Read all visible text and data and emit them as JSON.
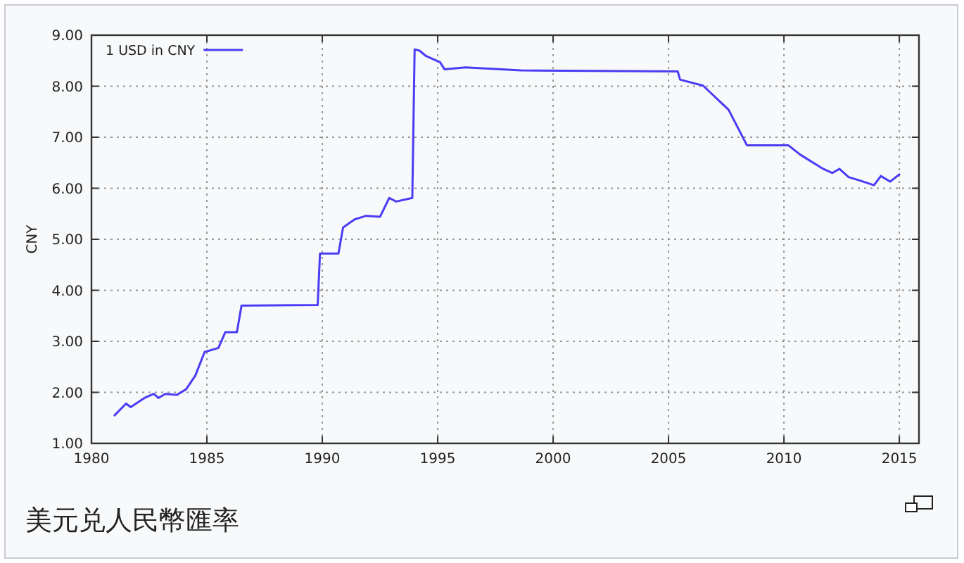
{
  "chart_data": {
    "type": "line",
    "ylabel": "CNY",
    "annotations": [
      "美元兑人民幣匯率"
    ],
    "xlim": [
      1980,
      2015.85
    ],
    "xticks": [
      1980,
      1985,
      1990,
      1995,
      2000,
      2005,
      2010,
      2015
    ],
    "ylim": [
      1,
      9
    ],
    "yticks": [
      {
        "value": 1,
        "label": "1.00"
      },
      {
        "value": 2,
        "label": "2.00"
      },
      {
        "value": 3,
        "label": "3.00"
      },
      {
        "value": 4,
        "label": "4.00"
      },
      {
        "value": 5,
        "label": "5.00"
      },
      {
        "value": 6,
        "label": "6.00"
      },
      {
        "value": 7,
        "label": "7.00"
      },
      {
        "value": 8,
        "label": "8.00"
      },
      {
        "value": 9,
        "label": "9.00"
      }
    ],
    "grid": true,
    "legend": "top left",
    "marker": "none",
    "line_style": "solid",
    "series": [
      {
        "name": "1 USD in CNY",
        "color": "#4b3cf5",
        "x": [
          1981.0,
          1981.5,
          1981.7,
          1982.1,
          1982.3,
          1982.7,
          1982.9,
          1983.2,
          1983.7,
          1984.1,
          1984.5,
          1984.9,
          1985.5,
          1985.8,
          1986.3,
          1986.5,
          1989.8,
          1989.9,
          1990.7,
          1990.9,
          1991.4,
          1991.9,
          1992.5,
          1992.9,
          1993.2,
          1993.9,
          1994.0,
          1994.2,
          1994.5,
          1995.1,
          1995.3,
          1996.2,
          1998.6,
          2005.4,
          2005.5,
          2006.5,
          2007.6,
          2008.4,
          2010.2,
          2010.7,
          2011.7,
          2012.1,
          2012.4,
          2012.8,
          2013.3,
          2013.9,
          2014.2,
          2014.6,
          2015.0
        ],
        "values": [
          1.55,
          1.78,
          1.71,
          1.83,
          1.89,
          1.97,
          1.89,
          1.97,
          1.95,
          2.06,
          2.33,
          2.79,
          2.87,
          3.18,
          3.18,
          3.7,
          3.71,
          4.72,
          4.72,
          5.23,
          5.39,
          5.46,
          5.44,
          5.81,
          5.74,
          5.81,
          8.72,
          8.7,
          8.59,
          8.47,
          8.33,
          8.37,
          8.31,
          8.29,
          8.13,
          8.01,
          7.54,
          6.84,
          6.84,
          6.66,
          6.38,
          6.3,
          6.38,
          6.22,
          6.15,
          6.06,
          6.24,
          6.13,
          6.27
        ]
      }
    ]
  }
}
